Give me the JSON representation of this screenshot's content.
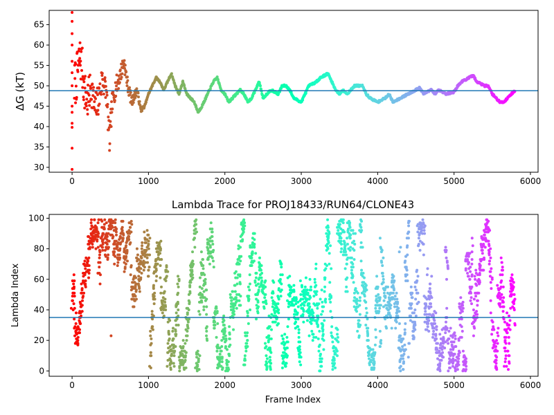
{
  "chart_data": [
    {
      "type": "scatter",
      "title": "",
      "xlabel": "",
      "ylabel": "ΔG (kT)",
      "xlim": [
        -300,
        6100
      ],
      "ylim": [
        28.8,
        68.5
      ],
      "xticks": [
        0,
        1000,
        2000,
        3000,
        4000,
        5000,
        6000
      ],
      "yticks": [
        30,
        35,
        40,
        45,
        50,
        55,
        60,
        65
      ],
      "hline": 48.8,
      "colormap": "rainbow (color by frame index, red at 0 to purple at last frame)",
      "x_range": [
        0,
        5800
      ],
      "series": [
        {
          "points": [
            [
              0,
              29.5
            ],
            [
              0,
              34.7
            ],
            [
              0,
              39.8
            ],
            [
              0,
              40.8
            ],
            [
              0,
              43.5
            ],
            [
              0,
              45.0
            ],
            [
              0,
              50.0
            ],
            [
              0,
              53.2
            ],
            [
              0,
              56.0
            ],
            [
              0,
              60.0
            ],
            [
              0,
              62.8
            ],
            [
              0,
              65.8
            ],
            [
              0,
              68.0
            ],
            [
              30,
              50
            ],
            [
              60,
              52
            ],
            [
              100,
              57
            ],
            [
              130,
              55
            ],
            [
              160,
              49
            ],
            [
              200,
              46
            ],
            [
              250,
              50
            ],
            [
              300,
              44
            ],
            [
              350,
              47
            ],
            [
              400,
              52
            ],
            [
              450,
              48
            ],
            [
              490,
              36
            ],
            [
              520,
              45
            ],
            [
              560,
              49
            ],
            [
              620,
              52
            ],
            [
              680,
              56
            ],
            [
              720,
              51
            ],
            [
              780,
              46
            ],
            [
              850,
              49
            ],
            [
              900,
              44
            ],
            [
              950,
              45
            ],
            [
              1000,
              48
            ],
            [
              1050,
              50
            ],
            [
              1100,
              52
            ],
            [
              1150,
              51
            ],
            [
              1200,
              49
            ],
            [
              1300,
              53
            ],
            [
              1350,
              50
            ],
            [
              1400,
              48
            ],
            [
              1450,
              51
            ],
            [
              1500,
              48
            ],
            [
              1550,
              47
            ],
            [
              1600,
              46
            ],
            [
              1650,
              43.5
            ],
            [
              1700,
              45
            ],
            [
              1750,
              47
            ],
            [
              1800,
              49
            ],
            [
              1850,
              51
            ],
            [
              1900,
              52
            ],
            [
              1950,
              49
            ],
            [
              2000,
              48
            ],
            [
              2050,
              46
            ],
            [
              2100,
              47
            ],
            [
              2200,
              49
            ],
            [
              2250,
              48
            ],
            [
              2300,
              46
            ],
            [
              2350,
              47
            ],
            [
              2400,
              49
            ],
            [
              2450,
              51
            ],
            [
              2500,
              47
            ],
            [
              2550,
              48
            ],
            [
              2600,
              49
            ],
            [
              2700,
              48
            ],
            [
              2750,
              50
            ],
            [
              2800,
              50
            ],
            [
              2850,
              49
            ],
            [
              2900,
              47
            ],
            [
              3000,
              46
            ],
            [
              3050,
              48
            ],
            [
              3100,
              50
            ],
            [
              3200,
              51
            ],
            [
              3250,
              52
            ],
            [
              3350,
              53
            ],
            [
              3400,
              51
            ],
            [
              3450,
              49
            ],
            [
              3500,
              48
            ],
            [
              3550,
              49
            ],
            [
              3600,
              48
            ],
            [
              3700,
              50
            ],
            [
              3800,
              50
            ],
            [
              3850,
              48
            ],
            [
              3900,
              47
            ],
            [
              4000,
              46
            ],
            [
              4100,
              47
            ],
            [
              4150,
              48
            ],
            [
              4200,
              46
            ],
            [
              4300,
              47
            ],
            [
              4400,
              48
            ],
            [
              4500,
              49
            ],
            [
              4550,
              49.5
            ],
            [
              4600,
              48
            ],
            [
              4700,
              49
            ],
            [
              4750,
              48
            ],
            [
              4800,
              49
            ],
            [
              4900,
              48
            ],
            [
              5000,
              48.5
            ],
            [
              5050,
              50
            ],
            [
              5100,
              51
            ],
            [
              5200,
              52
            ],
            [
              5250,
              52.5
            ],
            [
              5300,
              51
            ],
            [
              5400,
              50
            ],
            [
              5450,
              50
            ],
            [
              5500,
              48
            ],
            [
              5550,
              47
            ],
            [
              5600,
              46
            ],
            [
              5650,
              46
            ],
            [
              5700,
              47
            ],
            [
              5750,
              48
            ],
            [
              5800,
              48.8
            ]
          ]
        }
      ]
    },
    {
      "type": "scatter",
      "title": "Lambda Trace for PROJ18433/RUN64/CLONE43",
      "xlabel": "Frame Index",
      "ylabel": "Lambda Index",
      "xlim": [
        -300,
        6100
      ],
      "ylim": [
        -3.5,
        102.5
      ],
      "xticks": [
        0,
        1000,
        2000,
        3000,
        4000,
        5000,
        6000
      ],
      "yticks": [
        0,
        20,
        40,
        60,
        80,
        100
      ],
      "hline": 35,
      "colormap": "rainbow (color by frame index, red at 0 to purple at last frame)",
      "x_range": [
        0,
        5800
      ],
      "y_range": [
        0,
        99
      ]
    }
  ]
}
